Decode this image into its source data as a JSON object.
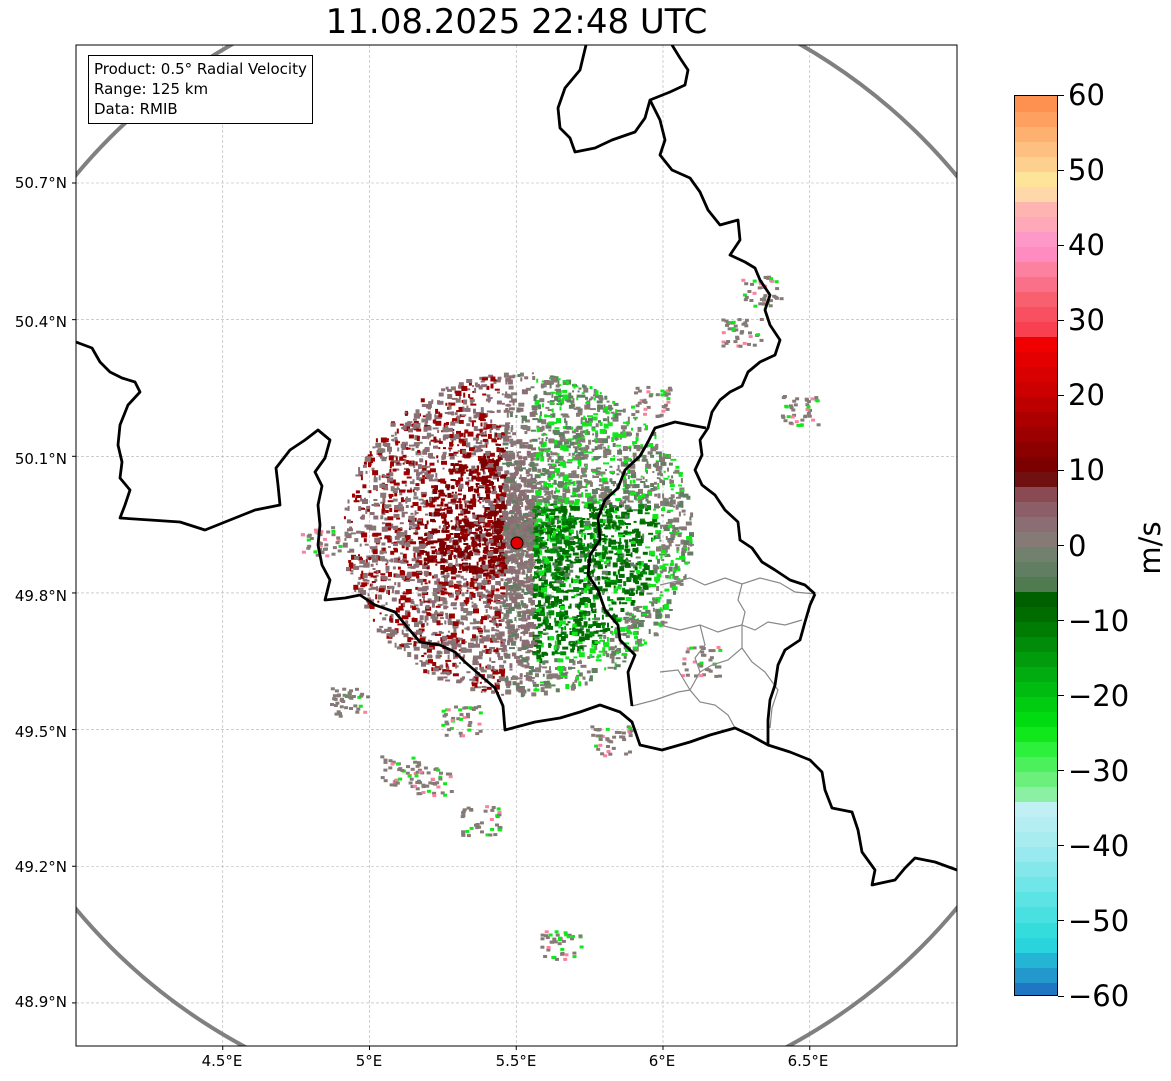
{
  "title": "11.08.2025 22:48 UTC",
  "info": {
    "product": "Product: 0.5° Radial Velocity",
    "range": "Range: 125 km",
    "data": "Data: RMIB"
  },
  "map": {
    "lon_range": [
      4.0,
      7.0
    ],
    "lat_range": [
      48.8,
      51.0
    ],
    "lat_ticks": [
      {
        "value": 50.7,
        "label": "50.7°N"
      },
      {
        "value": 50.4,
        "label": "50.4°N"
      },
      {
        "value": 50.1,
        "label": "50.1°N"
      },
      {
        "value": 49.8,
        "label": "49.8°N"
      },
      {
        "value": 49.5,
        "label": "49.5°N"
      },
      {
        "value": 49.2,
        "label": "49.2°N"
      },
      {
        "value": 48.9,
        "label": "48.9°N"
      }
    ],
    "lon_ticks": [
      {
        "value": 4.5,
        "label": "4.5°E"
      },
      {
        "value": 5.0,
        "label": "5°E"
      },
      {
        "value": 5.5,
        "label": "5.5°E"
      },
      {
        "value": 6.0,
        "label": "6°E"
      },
      {
        "value": 6.5,
        "label": "6.5°E"
      }
    ],
    "radar_site": {
      "lon": 5.505,
      "lat": 49.915
    },
    "range_km": 125,
    "grid": true,
    "colors": {
      "border": "#000000",
      "admin": "#888888",
      "range_ring": "#808080",
      "radar_marker": "#e00000"
    }
  },
  "colorbar": {
    "unit": "m/s",
    "vmin": -60,
    "vmax": 60,
    "ticks": [
      {
        "value": 60,
        "label": "60"
      },
      {
        "value": 50,
        "label": "50"
      },
      {
        "value": 40,
        "label": "40"
      },
      {
        "value": 30,
        "label": "30"
      },
      {
        "value": 20,
        "label": "20"
      },
      {
        "value": 10,
        "label": "10"
      },
      {
        "value": 0,
        "label": "0"
      },
      {
        "value": -10,
        "label": "−10"
      },
      {
        "value": -20,
        "label": "−20"
      },
      {
        "value": -30,
        "label": "−30"
      },
      {
        "value": -40,
        "label": "−40"
      },
      {
        "value": -50,
        "label": "−50"
      },
      {
        "value": -60,
        "label": "−60"
      }
    ],
    "stops": [
      {
        "from": -60,
        "to": -58,
        "color": "#1f77c4"
      },
      {
        "from": -58,
        "to": -56,
        "color": "#2398cc"
      },
      {
        "from": -56,
        "to": -54,
        "color": "#24b4d4"
      },
      {
        "from": -54,
        "to": -52,
        "color": "#2ad4dc"
      },
      {
        "from": -52,
        "to": -50,
        "color": "#34dcdc"
      },
      {
        "from": -50,
        "to": -48,
        "color": "#48e0e0"
      },
      {
        "from": -48,
        "to": -46,
        "color": "#5ce4e4"
      },
      {
        "from": -46,
        "to": -44,
        "color": "#70e6e8"
      },
      {
        "from": -44,
        "to": -42,
        "color": "#84e8ea"
      },
      {
        "from": -42,
        "to": -40,
        "color": "#98eaee"
      },
      {
        "from": -40,
        "to": -38,
        "color": "#a8ecf0"
      },
      {
        "from": -38,
        "to": -36,
        "color": "#b4eef2"
      },
      {
        "from": -36,
        "to": -34,
        "color": "#c0f0f4"
      },
      {
        "from": -34,
        "to": -32,
        "color": "#8cf0a4"
      },
      {
        "from": -32,
        "to": -30,
        "color": "#6cf07c"
      },
      {
        "from": -30,
        "to": -28,
        "color": "#4cf05c"
      },
      {
        "from": -28,
        "to": -26,
        "color": "#2cf03c"
      },
      {
        "from": -26,
        "to": -24,
        "color": "#10e81c"
      },
      {
        "from": -24,
        "to": -22,
        "color": "#00dc10"
      },
      {
        "from": -22,
        "to": -20,
        "color": "#00cc10"
      },
      {
        "from": -20,
        "to": -18,
        "color": "#00bc10"
      },
      {
        "from": -18,
        "to": -16,
        "color": "#00ac10"
      },
      {
        "from": -16,
        "to": -14,
        "color": "#009c0c"
      },
      {
        "from": -14,
        "to": -12,
        "color": "#008c08"
      },
      {
        "from": -12,
        "to": -10,
        "color": "#007c04"
      },
      {
        "from": -10,
        "to": -8,
        "color": "#006c00"
      },
      {
        "from": -8,
        "to": -6,
        "color": "#006000"
      },
      {
        "from": -6,
        "to": -4,
        "color": "#507a50"
      },
      {
        "from": -4,
        "to": -2,
        "color": "#627e62"
      },
      {
        "from": -2,
        "to": 0,
        "color": "#72806e"
      },
      {
        "from": 0,
        "to": 2,
        "color": "#857a75"
      },
      {
        "from": 2,
        "to": 4,
        "color": "#8a6e74"
      },
      {
        "from": 4,
        "to": 6,
        "color": "#8c5f68"
      },
      {
        "from": 6,
        "to": 8,
        "color": "#8a4a54"
      },
      {
        "from": 8,
        "to": 10,
        "color": "#701010"
      },
      {
        "from": 10,
        "to": 12,
        "color": "#7c0000"
      },
      {
        "from": 12,
        "to": 14,
        "color": "#8c0000"
      },
      {
        "from": 14,
        "to": 16,
        "color": "#9c0000"
      },
      {
        "from": 16,
        "to": 18,
        "color": "#ac0000"
      },
      {
        "from": 18,
        "to": 20,
        "color": "#bc0000"
      },
      {
        "from": 20,
        "to": 22,
        "color": "#cc0000"
      },
      {
        "from": 22,
        "to": 24,
        "color": "#d80000"
      },
      {
        "from": 24,
        "to": 26,
        "color": "#e40000"
      },
      {
        "from": 26,
        "to": 28,
        "color": "#f00000"
      },
      {
        "from": 28,
        "to": 30,
        "color": "#f84050"
      },
      {
        "from": 30,
        "to": 32,
        "color": "#f85060"
      },
      {
        "from": 32,
        "to": 34,
        "color": "#f86070"
      },
      {
        "from": 34,
        "to": 36,
        "color": "#fa7088"
      },
      {
        "from": 36,
        "to": 38,
        "color": "#fc80a0"
      },
      {
        "from": 38,
        "to": 40,
        "color": "#fe8cc0"
      },
      {
        "from": 40,
        "to": 42,
        "color": "#fe98c8"
      },
      {
        "from": 42,
        "to": 44,
        "color": "#fea8b8"
      },
      {
        "from": 44,
        "to": 46,
        "color": "#feb4b0"
      },
      {
        "from": 46,
        "to": 48,
        "color": "#fed8a8"
      },
      {
        "from": 48,
        "to": 50,
        "color": "#fee498"
      },
      {
        "from": 50,
        "to": 52,
        "color": "#fed090"
      },
      {
        "from": 52,
        "to": 54,
        "color": "#fec080"
      },
      {
        "from": 54,
        "to": 56,
        "color": "#feb070"
      },
      {
        "from": 56,
        "to": 58,
        "color": "#fea060"
      },
      {
        "from": 58,
        "to": 60,
        "color": "#fe9050"
      }
    ]
  },
  "echo_colors": {
    "dark_red": "#7c0000",
    "mid_red": "#9c0000",
    "pink_gray": "#8a6e74",
    "gray": "#857a75",
    "gray_green": "#627e62",
    "dark_green": "#006c00",
    "mid_green": "#008c08",
    "bright_green": "#10e81c",
    "pink": "#fc80a0"
  }
}
